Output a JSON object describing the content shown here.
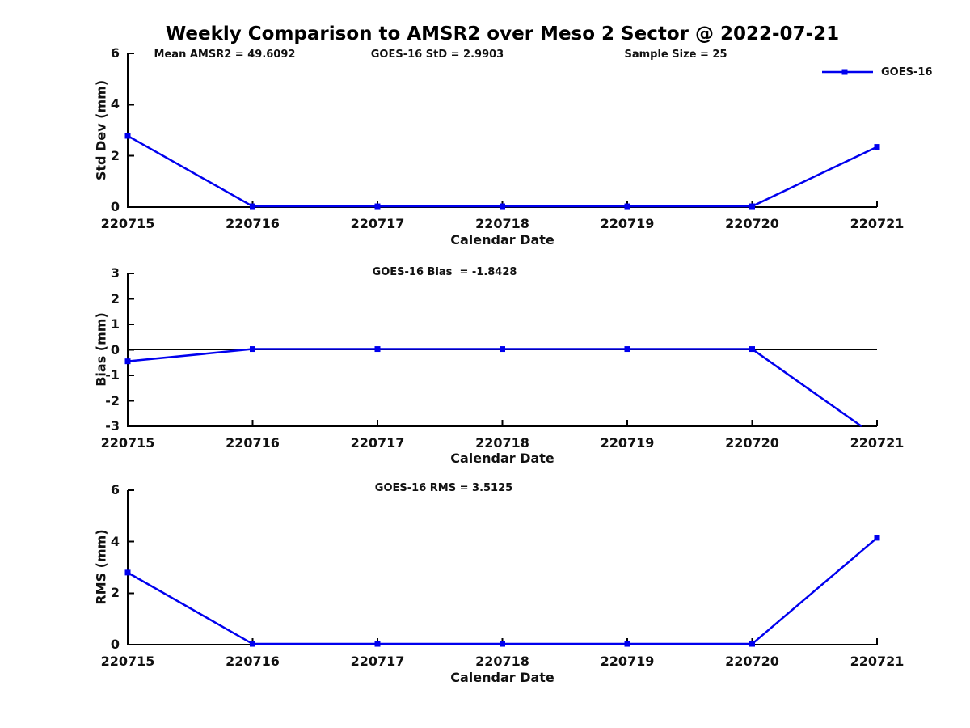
{
  "title": "Weekly Comparison to AMSR2 over Meso 2 Sector @ 2022-07-21",
  "legend": {
    "label": "GOES-16"
  },
  "colors": {
    "series": "#0000EE",
    "axis": "#000000",
    "text": "#111111"
  },
  "chart_data": [
    {
      "type": "line",
      "ylabel": "Std Dev (mm)",
      "xlabel": "Calendar Date",
      "annotations": [
        "Mean AMSR2 = 49.6092",
        "GOES-16 StD = 2.9903",
        "Sample Size = 25"
      ],
      "categories": [
        "220715",
        "220716",
        "220717",
        "220718",
        "220719",
        "220720",
        "220721"
      ],
      "yticks": [
        0,
        2,
        4,
        6
      ],
      "ylim": [
        0,
        6
      ],
      "grid": false,
      "legend_position": "top-right",
      "series": [
        {
          "name": "GOES-16",
          "marker": "square",
          "values": [
            2.78,
            0.03,
            0.03,
            0.03,
            0.03,
            0.03,
            2.35
          ]
        }
      ]
    },
    {
      "type": "line",
      "ylabel": "Bias (mm)",
      "xlabel": "Calendar Date",
      "annotations": [
        "GOES-16 Bias  = -1.8428"
      ],
      "categories": [
        "220715",
        "220716",
        "220717",
        "220718",
        "220719",
        "220720",
        "220721"
      ],
      "yticks": [
        -3,
        -2,
        -1,
        0,
        1,
        2,
        3
      ],
      "ylim": [
        -3,
        3
      ],
      "grid": false,
      "zero_line": true,
      "series": [
        {
          "name": "GOES-16",
          "marker": "square",
          "values": [
            -0.45,
            0.03,
            0.03,
            0.03,
            0.03,
            0.03,
            -3.43
          ]
        }
      ],
      "note": "last point falls below axis range and is clipped at -3"
    },
    {
      "type": "line",
      "ylabel": "RMS (mm)",
      "xlabel": "Calendar Date",
      "annotations": [
        "GOES-16 RMS = 3.5125"
      ],
      "categories": [
        "220715",
        "220716",
        "220717",
        "220718",
        "220719",
        "220720",
        "220721"
      ],
      "yticks": [
        0,
        2,
        4,
        6
      ],
      "ylim": [
        0,
        6
      ],
      "grid": false,
      "series": [
        {
          "name": "GOES-16",
          "marker": "square",
          "values": [
            2.8,
            0.03,
            0.03,
            0.03,
            0.03,
            0.03,
            4.15
          ]
        }
      ]
    }
  ]
}
